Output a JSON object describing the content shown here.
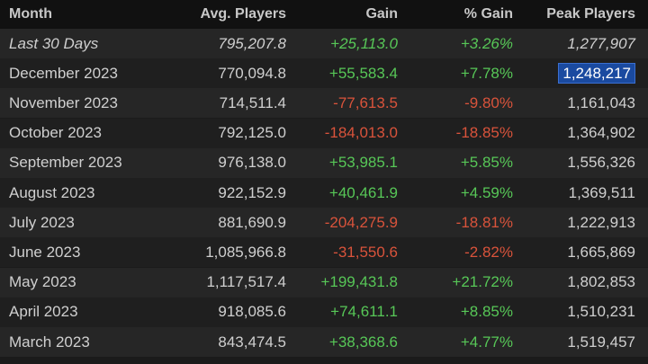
{
  "table": {
    "headers": {
      "month": "Month",
      "avg": "Avg. Players",
      "gain": "Gain",
      "pct": "% Gain",
      "peak": "Peak Players"
    },
    "rows": [
      {
        "month": "Last 30 Days",
        "avg": "795,207.8",
        "gain": "+25,113.0",
        "pct": "+3.26%",
        "peak": "1,277,907",
        "trend": "pos",
        "italic": true,
        "highlight_peak": false
      },
      {
        "month": "December 2023",
        "avg": "770,094.8",
        "gain": "+55,583.4",
        "pct": "+7.78%",
        "peak": "1,248,217",
        "trend": "pos",
        "italic": false,
        "highlight_peak": true
      },
      {
        "month": "November 2023",
        "avg": "714,511.4",
        "gain": "-77,613.5",
        "pct": "-9.80%",
        "peak": "1,161,043",
        "trend": "neg",
        "italic": false,
        "highlight_peak": false
      },
      {
        "month": "October 2023",
        "avg": "792,125.0",
        "gain": "-184,013.0",
        "pct": "-18.85%",
        "peak": "1,364,902",
        "trend": "neg",
        "italic": false,
        "highlight_peak": false
      },
      {
        "month": "September 2023",
        "avg": "976,138.0",
        "gain": "+53,985.1",
        "pct": "+5.85%",
        "peak": "1,556,326",
        "trend": "pos",
        "italic": false,
        "highlight_peak": false
      },
      {
        "month": "August 2023",
        "avg": "922,152.9",
        "gain": "+40,461.9",
        "pct": "+4.59%",
        "peak": "1,369,511",
        "trend": "pos",
        "italic": false,
        "highlight_peak": false
      },
      {
        "month": "July 2023",
        "avg": "881,690.9",
        "gain": "-204,275.9",
        "pct": "-18.81%",
        "peak": "1,222,913",
        "trend": "neg",
        "italic": false,
        "highlight_peak": false
      },
      {
        "month": "June 2023",
        "avg": "1,085,966.8",
        "gain": "-31,550.6",
        "pct": "-2.82%",
        "peak": "1,665,869",
        "trend": "neg",
        "italic": false,
        "highlight_peak": false
      },
      {
        "month": "May 2023",
        "avg": "1,117,517.4",
        "gain": "+199,431.8",
        "pct": "+21.72%",
        "peak": "1,802,853",
        "trend": "pos",
        "italic": false,
        "highlight_peak": false
      },
      {
        "month": "April 2023",
        "avg": "918,085.6",
        "gain": "+74,611.1",
        "pct": "+8.85%",
        "peak": "1,510,231",
        "trend": "pos",
        "italic": false,
        "highlight_peak": false
      },
      {
        "month": "March 2023",
        "avg": "843,474.5",
        "gain": "+38,368.6",
        "pct": "+4.77%",
        "peak": "1,519,457",
        "trend": "pos",
        "italic": false,
        "highlight_peak": false
      }
    ]
  },
  "colors": {
    "positive": "#57c757",
    "negative": "#d9533b",
    "selection": "#1a4aa0"
  }
}
